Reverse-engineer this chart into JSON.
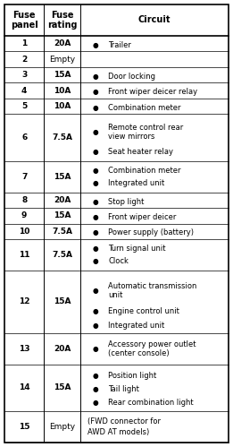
{
  "title_col1": "Fuse\npanel",
  "title_col2": "Fuse\nrating",
  "title_col3": "Circuit",
  "rows": [
    {
      "panel": "1",
      "rating": "20A",
      "bullets": 1,
      "circuit": [
        "Trailer"
      ]
    },
    {
      "panel": "2",
      "rating": "Empty",
      "bullets": 0,
      "circuit": []
    },
    {
      "panel": "3",
      "rating": "15A",
      "bullets": 1,
      "circuit": [
        "Door locking"
      ]
    },
    {
      "panel": "4",
      "rating": "10A",
      "bullets": 1,
      "circuit": [
        "Front wiper deicer relay"
      ]
    },
    {
      "panel": "5",
      "rating": "10A",
      "bullets": 1,
      "circuit": [
        "Combination meter"
      ]
    },
    {
      "panel": "6",
      "rating": "7.5A",
      "bullets": 2,
      "circuit": [
        "Remote control rear\nview mirrors",
        "Seat heater relay"
      ]
    },
    {
      "panel": "7",
      "rating": "15A",
      "bullets": 2,
      "circuit": [
        "Combination meter",
        "Integrated unit"
      ]
    },
    {
      "panel": "8",
      "rating": "20A",
      "bullets": 1,
      "circuit": [
        "Stop light"
      ]
    },
    {
      "panel": "9",
      "rating": "15A",
      "bullets": 1,
      "circuit": [
        "Front wiper deicer"
      ]
    },
    {
      "panel": "10",
      "rating": "7.5A",
      "bullets": 1,
      "circuit": [
        "Power supply (battery)"
      ]
    },
    {
      "panel": "11",
      "rating": "7.5A",
      "bullets": 2,
      "circuit": [
        "Turn signal unit",
        "Clock"
      ]
    },
    {
      "panel": "12",
      "rating": "15A",
      "bullets": 3,
      "circuit": [
        "Automatic transmission\nunit",
        "Engine control unit",
        "Integrated unit"
      ]
    },
    {
      "panel": "13",
      "rating": "20A",
      "bullets": 1,
      "circuit": [
        "Accessory power outlet\n(center console)"
      ]
    },
    {
      "panel": "14",
      "rating": "15A",
      "bullets": 3,
      "circuit": [
        "Position light",
        "Tail light",
        "Rear combination light"
      ]
    },
    {
      "panel": "15",
      "rating": "Empty",
      "bullets": 0,
      "circuit": [
        "(FWD connector for\nAWD AT models)"
      ]
    }
  ],
  "row_units": [
    1,
    1,
    1,
    1,
    1,
    3,
    2,
    1,
    1,
    1,
    2,
    4,
    2,
    3,
    2
  ],
  "col_divs": [
    0.0,
    0.175,
    0.34,
    1.0
  ],
  "bg_color": "#ffffff",
  "line_color": "#000000",
  "text_color": "#000000",
  "header_font_size": 7.0,
  "font_size": 6.5,
  "bullet_font_size": 5.5,
  "header_units": 2,
  "border_lw": 1.2,
  "inner_lw": 0.7,
  "thin_lw": 0.5
}
